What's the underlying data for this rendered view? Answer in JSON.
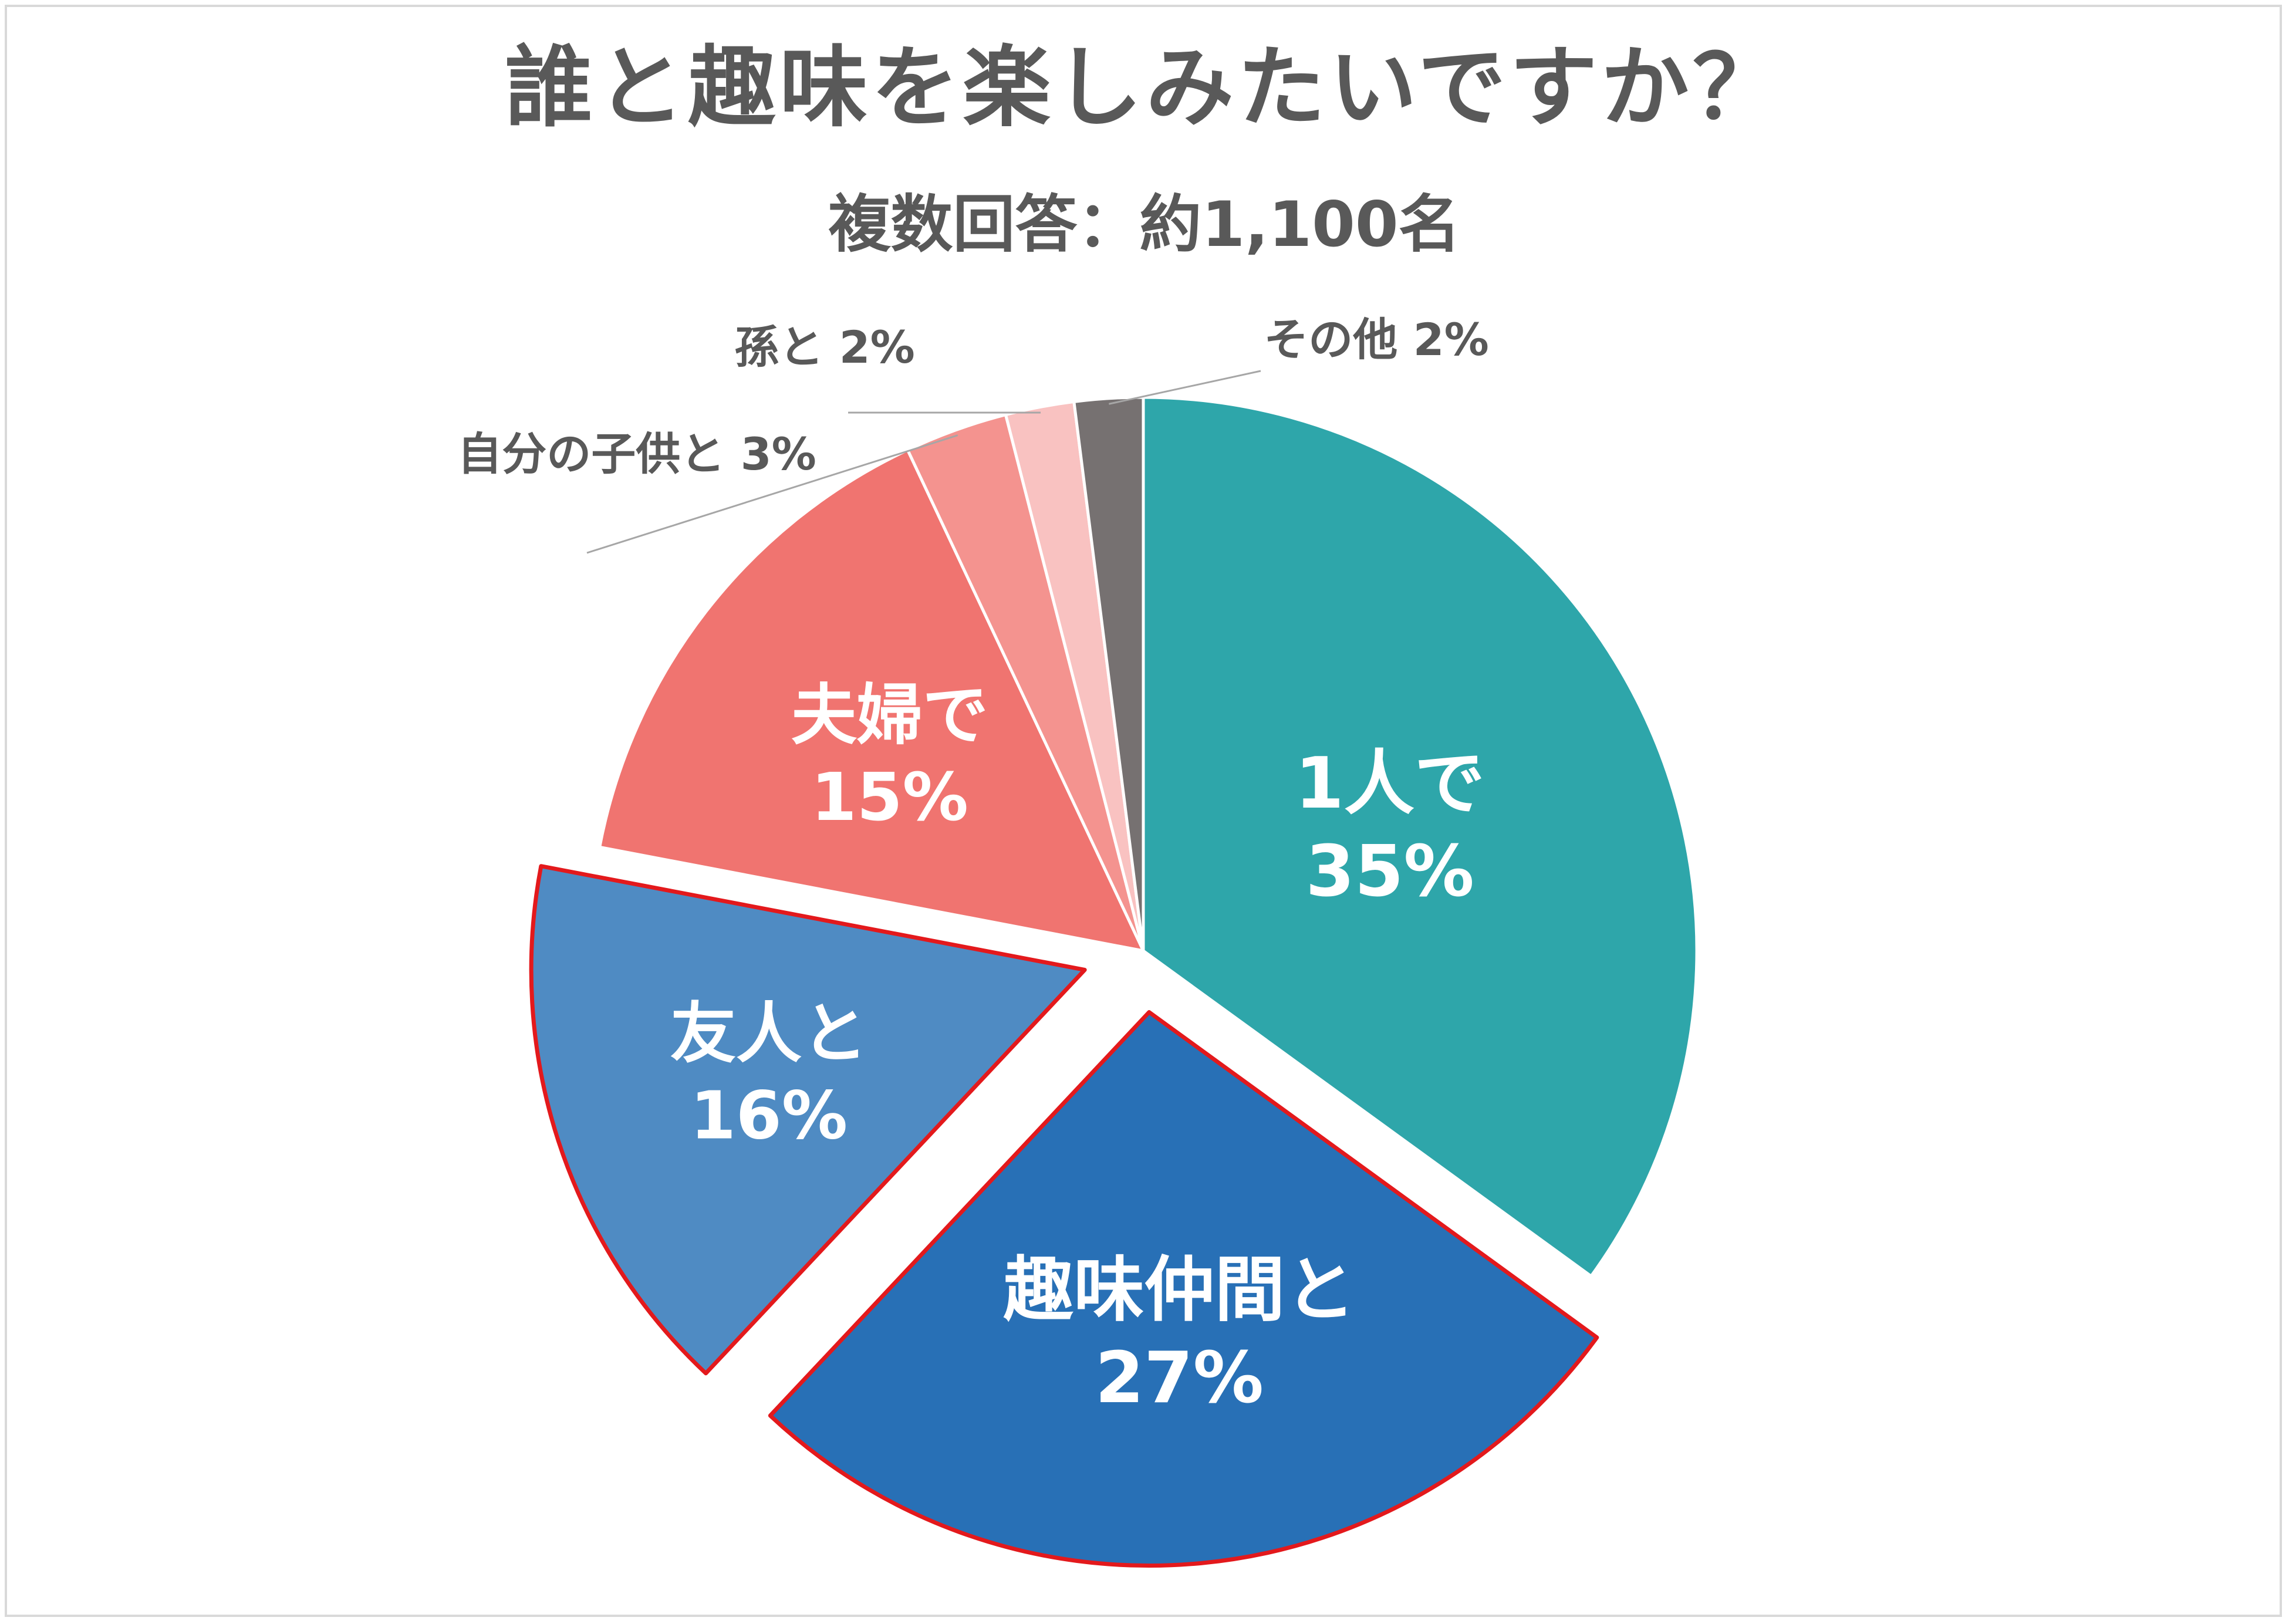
{
  "chart_data": {
    "type": "pie",
    "title": "誰と趣味を楽しみたいですか？",
    "subtitle": "複数回答：約1,100名",
    "slices": [
      {
        "label": "1人で",
        "value": 35,
        "value_label": "35%",
        "color": "#2ea6aa",
        "exploded": false,
        "label_position": "inside"
      },
      {
        "label": "趣味仲間と",
        "value": 27,
        "value_label": "27%",
        "color": "#2870b6",
        "exploded": true,
        "outline_color": "#e3191c",
        "label_position": "inside"
      },
      {
        "label": "友人と",
        "value": 16,
        "value_label": "16%",
        "color": "#4f8bc3",
        "exploded": true,
        "outline_color": "#e3191c",
        "label_position": "inside"
      },
      {
        "label": "夫婦で",
        "value": 15,
        "value_label": "15%",
        "color": "#f07470",
        "exploded": false,
        "label_position": "inside"
      },
      {
        "label": "自分の子供と",
        "value": 3,
        "value_label": "3%",
        "color": "#f4938f",
        "exploded": false,
        "label_position": "outside"
      },
      {
        "label": "孫と",
        "value": 2,
        "value_label": "2%",
        "color": "#f9c2c1",
        "exploded": false,
        "label_position": "outside"
      },
      {
        "label": "その他",
        "value": 2,
        "value_label": "2%",
        "color": "#767171",
        "exploded": false,
        "label_position": "outside"
      }
    ]
  }
}
